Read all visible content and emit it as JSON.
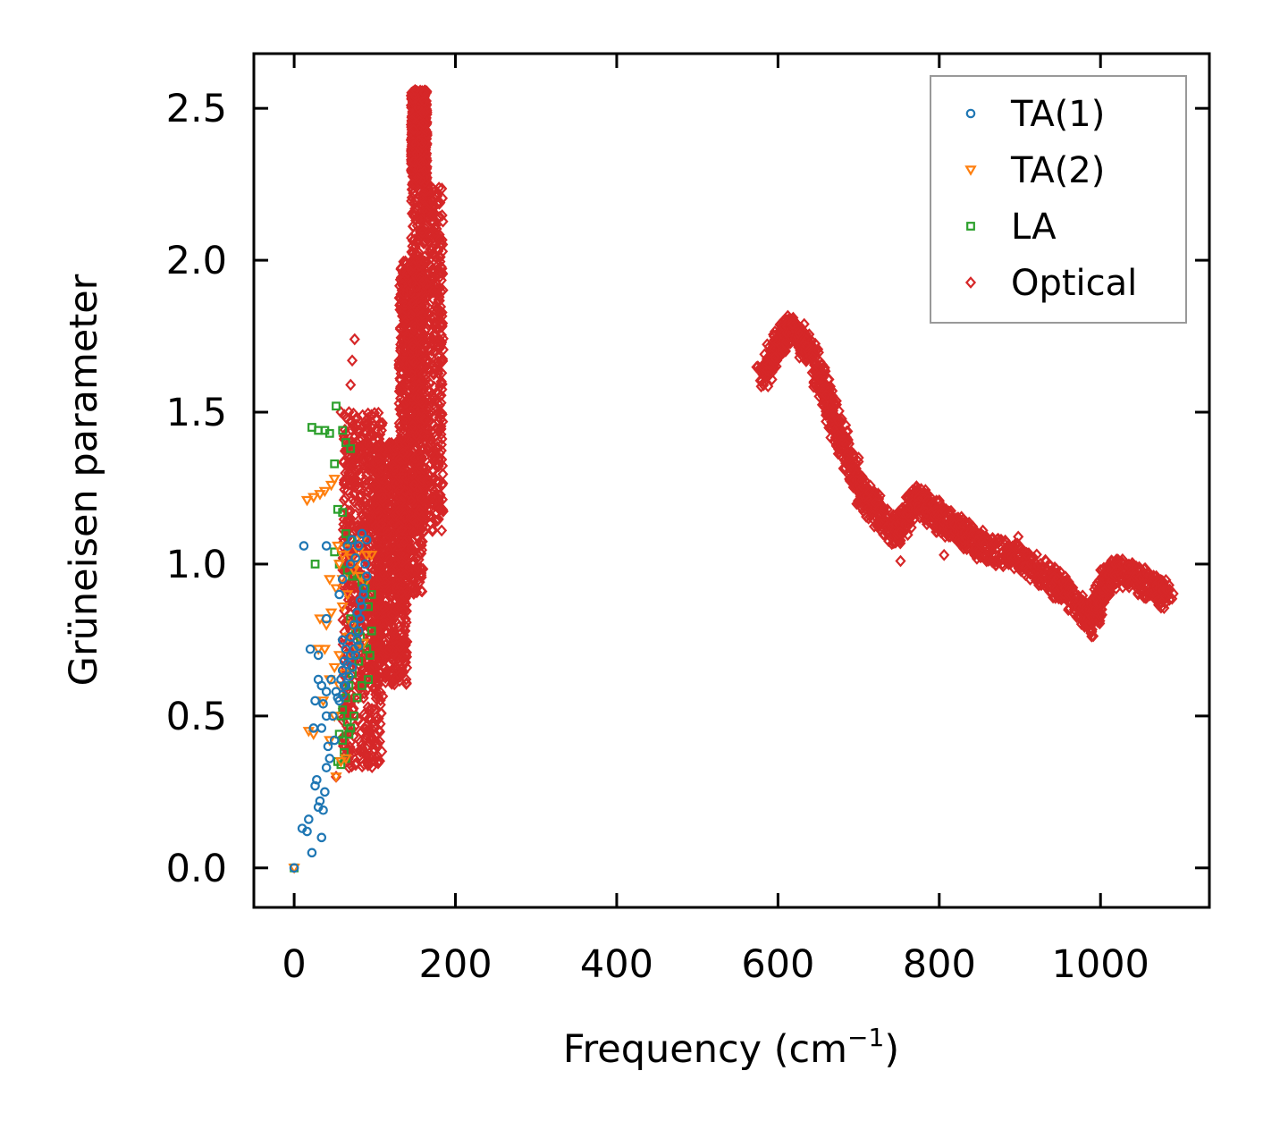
{
  "chart_data": {
    "type": "scatter",
    "title": "",
    "xlabel": "Frequency (cm",
    "xlabel_sup": "−1",
    "xlabel_close": ")",
    "ylabel": "Grüneisen parameter",
    "xlim": [
      -50,
      1135
    ],
    "ylim": [
      -0.13,
      2.68
    ],
    "xticks": [
      0,
      200,
      400,
      600,
      800,
      1000
    ],
    "xtick_labels": [
      "0",
      "200",
      "400",
      "600",
      "800",
      "1000"
    ],
    "yticks": [
      0.0,
      0.5,
      1.0,
      1.5,
      2.0,
      2.5
    ],
    "ytick_labels": [
      "0.0",
      "0.5",
      "1.0",
      "1.5",
      "2.0",
      "2.5"
    ],
    "grid": false,
    "legend_position": "top-right",
    "series": [
      {
        "name": "TA(1)",
        "marker": "circle",
        "color": "#1f77b4",
        "points": [
          [
            0,
            0.0
          ],
          [
            10,
            0.13
          ],
          [
            16,
            0.12
          ],
          [
            22,
            0.05
          ],
          [
            34,
            0.1
          ],
          [
            18,
            0.16
          ],
          [
            30,
            0.2
          ],
          [
            32,
            0.22
          ],
          [
            36,
            0.19
          ],
          [
            38,
            0.25
          ],
          [
            26,
            0.27
          ],
          [
            28,
            0.29
          ],
          [
            40,
            0.33
          ],
          [
            44,
            0.36
          ],
          [
            24,
            0.46
          ],
          [
            34,
            0.46
          ],
          [
            42,
            0.4
          ],
          [
            50,
            0.42
          ],
          [
            26,
            0.55
          ],
          [
            36,
            0.54
          ],
          [
            40,
            0.5
          ],
          [
            48,
            0.5
          ],
          [
            56,
            0.55
          ],
          [
            60,
            0.57
          ],
          [
            62,
            0.6
          ],
          [
            30,
            0.62
          ],
          [
            34,
            0.6
          ],
          [
            40,
            0.58
          ],
          [
            46,
            0.62
          ],
          [
            52,
            0.58
          ],
          [
            20,
            0.72
          ],
          [
            30,
            0.7
          ],
          [
            60,
            0.65
          ],
          [
            66,
            0.67
          ],
          [
            70,
            0.7
          ],
          [
            40,
            0.82
          ],
          [
            74,
            0.72
          ],
          [
            78,
            0.75
          ],
          [
            80,
            0.78
          ],
          [
            82,
            0.82
          ],
          [
            84,
            0.86
          ],
          [
            86,
            0.9
          ],
          [
            56,
            0.9
          ],
          [
            60,
            0.95
          ],
          [
            70,
            1.0
          ],
          [
            76,
            1.02
          ],
          [
            80,
            1.06
          ],
          [
            84,
            1.1
          ],
          [
            90,
            1.08
          ],
          [
            60,
            0.75
          ],
          [
            64,
            0.6
          ],
          [
            68,
            0.63
          ],
          [
            72,
            0.66
          ],
          [
            76,
            0.7
          ],
          [
            80,
            0.73
          ],
          [
            12,
            1.06
          ],
          [
            40,
            1.06
          ],
          [
            66,
            1.06
          ],
          [
            72,
            1.08
          ],
          [
            88,
            1.0
          ],
          [
            54,
            0.56
          ],
          [
            58,
            0.62
          ],
          [
            62,
            0.68
          ],
          [
            64,
            0.72
          ],
          [
            70,
            0.76
          ],
          [
            74,
            0.8
          ],
          [
            78,
            0.84
          ],
          [
            82,
            0.88
          ],
          [
            86,
            0.92
          ],
          [
            90,
            0.96
          ]
        ]
      },
      {
        "name": "TA(2)",
        "marker": "triangle-down",
        "color": "#ff7f0e",
        "points": [
          [
            0,
            0.0
          ],
          [
            18,
            0.45
          ],
          [
            24,
            0.44
          ],
          [
            52,
            0.3
          ],
          [
            58,
            0.35
          ],
          [
            64,
            0.36
          ],
          [
            44,
            0.42
          ],
          [
            50,
            0.5
          ],
          [
            36,
            0.55
          ],
          [
            44,
            0.62
          ],
          [
            50,
            0.66
          ],
          [
            56,
            0.7
          ],
          [
            30,
            0.72
          ],
          [
            38,
            0.72
          ],
          [
            32,
            0.82
          ],
          [
            40,
            0.8
          ],
          [
            46,
            0.84
          ],
          [
            60,
            0.86
          ],
          [
            44,
            0.95
          ],
          [
            52,
            0.92
          ],
          [
            60,
            0.95
          ],
          [
            66,
            0.9
          ],
          [
            56,
            1.0
          ],
          [
            60,
            1.03
          ],
          [
            66,
            1.05
          ],
          [
            70,
            1.02
          ],
          [
            76,
            1.0
          ],
          [
            80,
            1.04
          ],
          [
            90,
            1.03
          ],
          [
            96,
            1.03
          ],
          [
            16,
            1.21
          ],
          [
            24,
            1.22
          ],
          [
            32,
            1.23
          ],
          [
            38,
            1.24
          ],
          [
            46,
            1.26
          ],
          [
            50,
            1.28
          ],
          [
            54,
            1.06
          ],
          [
            84,
            1.08
          ],
          [
            72,
            0.8
          ],
          [
            66,
            0.76
          ],
          [
            56,
            0.6
          ],
          [
            62,
            0.64
          ],
          [
            70,
            0.7
          ],
          [
            78,
            0.72
          ],
          [
            86,
            0.74
          ],
          [
            74,
            0.98
          ],
          [
            82,
            0.96
          ],
          [
            88,
            0.94
          ]
        ]
      },
      {
        "name": "LA",
        "marker": "square",
        "color": "#2ca02c",
        "points": [
          [
            0,
            0.0
          ],
          [
            22,
            1.45
          ],
          [
            30,
            1.44
          ],
          [
            38,
            1.44
          ],
          [
            44,
            1.43
          ],
          [
            52,
            1.52
          ],
          [
            60,
            1.44
          ],
          [
            64,
            1.4
          ],
          [
            70,
            1.38
          ],
          [
            50,
            1.33
          ],
          [
            54,
            1.18
          ],
          [
            60,
            1.17
          ],
          [
            64,
            1.1
          ],
          [
            70,
            1.08
          ],
          [
            26,
            1.0
          ],
          [
            50,
            1.04
          ],
          [
            56,
            1.0
          ],
          [
            66,
            0.98
          ],
          [
            72,
            0.96
          ],
          [
            78,
            0.96
          ],
          [
            84,
            0.94
          ],
          [
            88,
            0.92
          ],
          [
            96,
            0.9
          ],
          [
            92,
            0.86
          ],
          [
            70,
            0.82
          ],
          [
            76,
            0.78
          ],
          [
            82,
            0.76
          ],
          [
            86,
            0.74
          ],
          [
            90,
            0.72
          ],
          [
            94,
            0.7
          ],
          [
            80,
            0.68
          ],
          [
            72,
            0.64
          ],
          [
            68,
            0.6
          ],
          [
            64,
            0.56
          ],
          [
            60,
            0.52
          ],
          [
            58,
            0.5
          ],
          [
            66,
            0.48
          ],
          [
            70,
            0.46
          ],
          [
            56,
            0.44
          ],
          [
            60,
            0.42
          ],
          [
            62,
            0.38
          ],
          [
            54,
            0.35
          ],
          [
            58,
            0.34
          ],
          [
            64,
            0.36
          ],
          [
            96,
            0.78
          ],
          [
            92,
            0.62
          ],
          [
            84,
            0.6
          ],
          [
            78,
            0.56
          ],
          [
            74,
            0.5
          ],
          [
            68,
            0.44
          ]
        ]
      },
      {
        "name": "Optical",
        "marker": "diamond",
        "color": "#d62728",
        "clusters": [
          {
            "x": [
              60,
              110
            ],
            "y": [
              0.33,
              1.5
            ]
          },
          {
            "x": [
              100,
              140
            ],
            "y": [
              0.6,
              1.4
            ]
          },
          {
            "x": [
              130,
              160
            ],
            "y": [
              0.9,
              2.0
            ]
          },
          {
            "x": [
              145,
              185
            ],
            "y": [
              1.1,
              2.25
            ]
          },
          {
            "x": [
              145,
              165
            ],
            "y": [
              2.25,
              2.56
            ]
          }
        ],
        "path": [
          [
            580,
            1.62
          ],
          [
            600,
            1.72
          ],
          [
            615,
            1.78
          ],
          [
            640,
            1.7
          ],
          [
            660,
            1.55
          ],
          [
            680,
            1.4
          ],
          [
            700,
            1.25
          ],
          [
            720,
            1.18
          ],
          [
            750,
            1.1
          ],
          [
            770,
            1.22
          ],
          [
            800,
            1.15
          ],
          [
            830,
            1.1
          ],
          [
            860,
            1.05
          ],
          [
            900,
            1.02
          ],
          [
            940,
            0.95
          ],
          [
            960,
            0.9
          ],
          [
            990,
            0.8
          ],
          [
            1000,
            0.92
          ],
          [
            1020,
            0.98
          ],
          [
            1060,
            0.93
          ],
          [
            1085,
            0.89
          ]
        ],
        "highlights": [
          [
            150,
            2.56
          ],
          [
            160,
            2.45
          ],
          [
            148,
            2.43
          ],
          [
            152,
            2.35
          ],
          [
            75,
            1.74
          ],
          [
            72,
            1.67
          ],
          [
            70,
            1.59
          ],
          [
            68,
            1.5
          ],
          [
            58,
            1.5
          ],
          [
            68,
            0.33
          ],
          [
            52,
            0.3
          ],
          [
            88,
            0.42
          ],
          [
            132,
            0.84
          ],
          [
            596,
            1.68
          ],
          [
            618,
            1.79
          ],
          [
            675,
            1.47
          ],
          [
            700,
            1.35
          ],
          [
            752,
            1.01
          ],
          [
            806,
            1.03
          ],
          [
            898,
            1.09
          ],
          [
            1000,
            0.98
          ]
        ]
      }
    ]
  }
}
